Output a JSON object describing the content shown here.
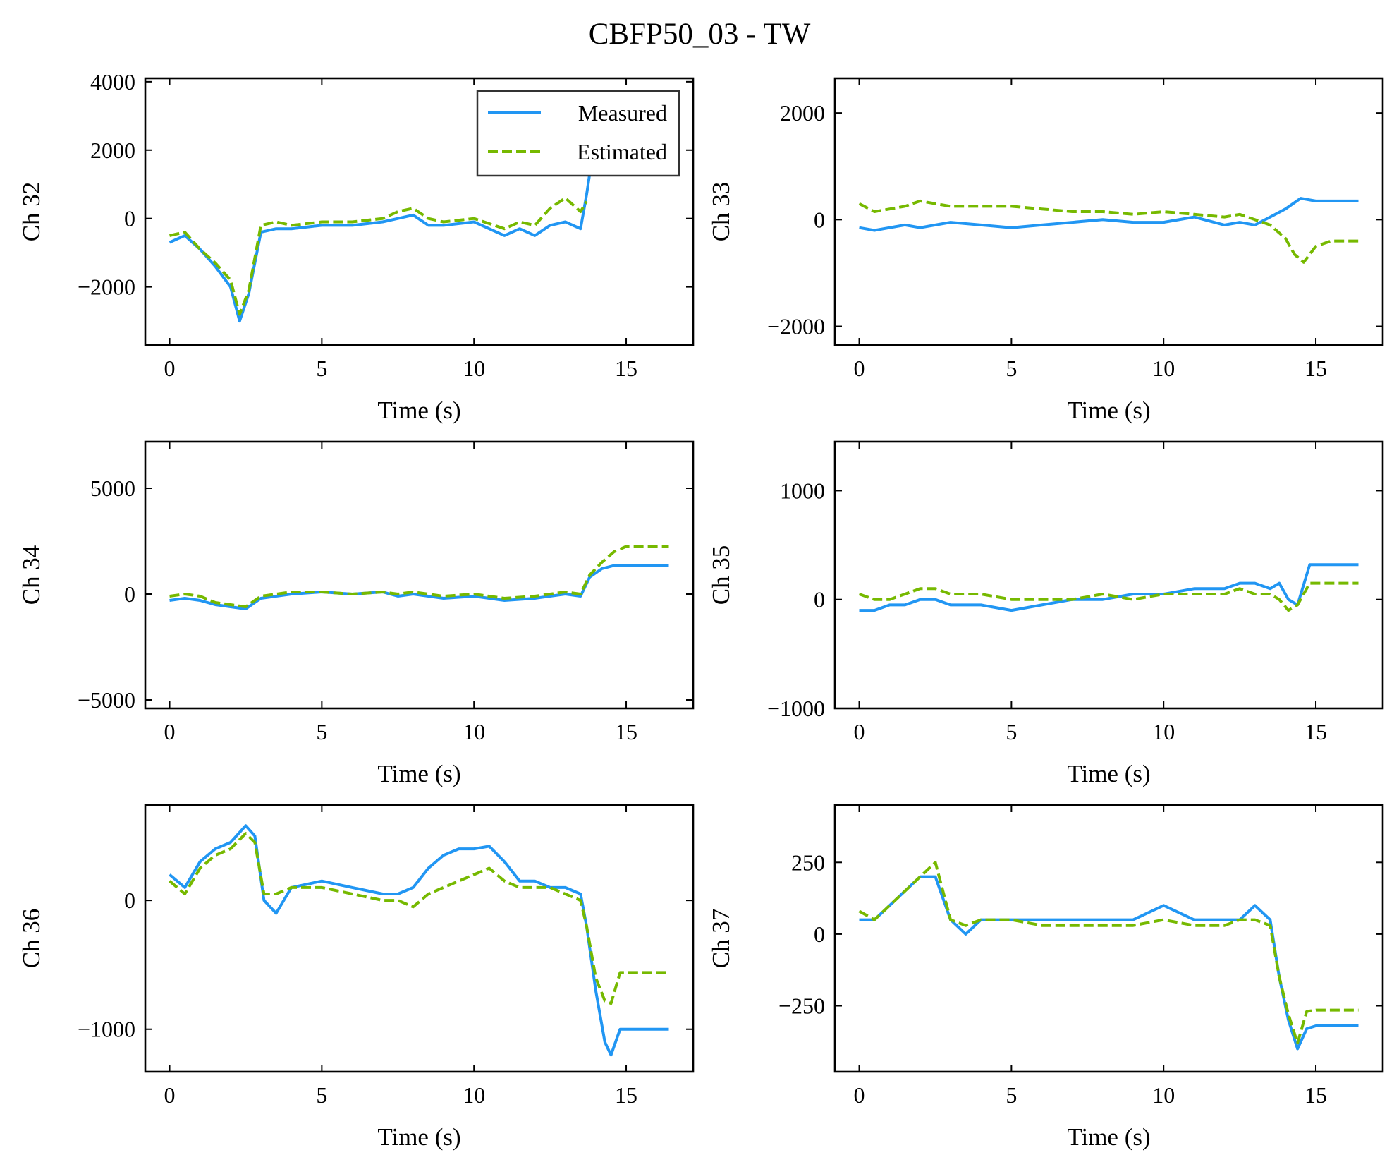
{
  "figure": {
    "suptitle": "CBFP50_03 - TW",
    "colors": {
      "measured": "#2196F3",
      "estimated": "#76B900"
    }
  },
  "legend": {
    "placement": "upper right of first panel",
    "items": [
      "Measured",
      "Estimated"
    ]
  },
  "chart_data": [
    {
      "type": "line",
      "ylabel": "Ch 32",
      "xlabel": "Time (s)",
      "xlim": [
        -0.8,
        17.2
      ],
      "ylim": [
        -3700,
        4100
      ],
      "xticks": [
        0,
        5,
        10,
        15
      ],
      "xtick_labels": [
        "0",
        "5",
        "10",
        "15"
      ],
      "yticks": [
        -2000,
        0,
        2000,
        4000
      ],
      "ytick_labels": [
        "−2000",
        "0",
        "2000",
        "4000"
      ],
      "series": [
        {
          "name": "Measured",
          "style": "solid",
          "color": "#2196F3",
          "x": [
            0,
            0.5,
            1,
            1.5,
            2,
            2.3,
            2.6,
            3,
            3.5,
            4,
            5,
            6,
            7,
            7.5,
            8,
            8.5,
            9,
            10,
            11,
            11.5,
            12,
            12.5,
            13,
            13.5,
            13.7,
            14,
            14.3,
            14.6,
            15,
            15.5,
            16,
            16.4
          ],
          "y": [
            -700,
            -500,
            -900,
            -1400,
            -2000,
            -3000,
            -2200,
            -400,
            -300,
            -300,
            -200,
            -200,
            -100,
            0,
            100,
            -200,
            -200,
            -100,
            -500,
            -300,
            -500,
            -200,
            -100,
            -300,
            700,
            2500,
            3500,
            3300,
            3000,
            2900,
            2900,
            2900
          ]
        },
        {
          "name": "Estimated",
          "style": "dashed",
          "color": "#76B900",
          "x": [
            0,
            0.5,
            1,
            1.5,
            2,
            2.3,
            2.6,
            3,
            3.5,
            4,
            5,
            6,
            7,
            7.5,
            8,
            8.5,
            9,
            10,
            11,
            11.5,
            12,
            12.5,
            13,
            13.5,
            13.7
          ],
          "y": [
            -500,
            -400,
            -900,
            -1300,
            -1800,
            -2800,
            -2100,
            -200,
            -100,
            -200,
            -100,
            -100,
            0,
            200,
            300,
            0,
            -100,
            0,
            -300,
            -100,
            -200,
            300,
            600,
            200,
            500
          ]
        }
      ]
    },
    {
      "type": "line",
      "ylabel": "Ch 33",
      "xlabel": "Time (s)",
      "xlim": [
        -0.8,
        17.2
      ],
      "ylim": [
        -2350,
        2650
      ],
      "xticks": [
        0,
        5,
        10,
        15
      ],
      "xtick_labels": [
        "0",
        "5",
        "10",
        "15"
      ],
      "yticks": [
        -2000,
        0,
        2000
      ],
      "ytick_labels": [
        "−2000",
        "0",
        "2000"
      ],
      "series": [
        {
          "name": "Measured",
          "style": "solid",
          "color": "#2196F3",
          "x": [
            0,
            0.5,
            1,
            1.5,
            2,
            2.5,
            3,
            4,
            5,
            6,
            7,
            8,
            9,
            10,
            11,
            12,
            12.5,
            13,
            13.5,
            14,
            14.5,
            15,
            15.5,
            16,
            16.4
          ],
          "y": [
            -150,
            -200,
            -150,
            -100,
            -150,
            -100,
            -50,
            -100,
            -150,
            -100,
            -50,
            0,
            -50,
            -50,
            50,
            -100,
            -50,
            -100,
            50,
            200,
            400,
            350,
            350,
            350,
            350
          ]
        },
        {
          "name": "Estimated",
          "style": "dashed",
          "color": "#76B900",
          "x": [
            0,
            0.5,
            1,
            1.5,
            2,
            2.5,
            3,
            4,
            5,
            6,
            7,
            8,
            9,
            10,
            11,
            12,
            12.5,
            13,
            13.5,
            14,
            14.3,
            14.6,
            15,
            15.5,
            16,
            16.4
          ],
          "y": [
            300,
            150,
            200,
            250,
            350,
            300,
            250,
            250,
            250,
            200,
            150,
            150,
            100,
            150,
            100,
            50,
            100,
            0,
            -100,
            -350,
            -650,
            -800,
            -500,
            -400,
            -400,
            -400
          ]
        }
      ]
    },
    {
      "type": "line",
      "ylabel": "Ch 34",
      "xlabel": "Time (s)",
      "xlim": [
        -0.8,
        17.2
      ],
      "ylim": [
        -5400,
        7200
      ],
      "xticks": [
        0,
        5,
        10,
        15
      ],
      "xtick_labels": [
        "0",
        "5",
        "10",
        "15"
      ],
      "yticks": [
        -5000,
        0,
        5000
      ],
      "ytick_labels": [
        "−5000",
        "0",
        "5000"
      ],
      "series": [
        {
          "name": "Measured",
          "style": "solid",
          "color": "#2196F3",
          "x": [
            0,
            0.5,
            1,
            1.5,
            2,
            2.5,
            3,
            4,
            5,
            6,
            7,
            7.5,
            8,
            9,
            10,
            11,
            12,
            12.5,
            13,
            13.5,
            13.8,
            14.2,
            14.6,
            15,
            15.5,
            16,
            16.4
          ],
          "y": [
            -300,
            -200,
            -300,
            -500,
            -600,
            -700,
            -200,
            0,
            100,
            0,
            100,
            -100,
            0,
            -200,
            -100,
            -300,
            -200,
            -100,
            0,
            -100,
            800,
            1200,
            1350,
            1350,
            1350,
            1350,
            1350
          ]
        },
        {
          "name": "Estimated",
          "style": "dashed",
          "color": "#76B900",
          "x": [
            0,
            0.5,
            1,
            1.5,
            2,
            2.5,
            3,
            4,
            5,
            6,
            7,
            7.5,
            8,
            9,
            10,
            11,
            12,
            12.5,
            13,
            13.5,
            13.8,
            14.2,
            14.6,
            15,
            15.5,
            16,
            16.4
          ],
          "y": [
            -100,
            0,
            -100,
            -400,
            -500,
            -600,
            -100,
            100,
            100,
            0,
            100,
            0,
            100,
            -100,
            0,
            -200,
            -100,
            0,
            100,
            0,
            900,
            1500,
            2000,
            2250,
            2250,
            2250,
            2250
          ]
        }
      ]
    },
    {
      "type": "line",
      "ylabel": "Ch 35",
      "xlabel": "Time (s)",
      "xlim": [
        -0.8,
        17.2
      ],
      "ylim": [
        -1000,
        1450
      ],
      "xticks": [
        0,
        5,
        10,
        15
      ],
      "xtick_labels": [
        "0",
        "5",
        "10",
        "15"
      ],
      "yticks": [
        -1000,
        0,
        1000
      ],
      "ytick_labels": [
        "−1000",
        "0",
        "1000"
      ],
      "series": [
        {
          "name": "Measured",
          "style": "solid",
          "color": "#2196F3",
          "x": [
            0,
            0.5,
            1,
            1.5,
            2,
            2.5,
            3,
            4,
            5,
            6,
            7,
            8,
            9,
            10,
            11,
            12,
            12.5,
            13,
            13.5,
            13.8,
            14.1,
            14.4,
            14.8,
            15.5,
            16,
            16.4
          ],
          "y": [
            -100,
            -100,
            -50,
            -50,
            0,
            0,
            -50,
            -50,
            -100,
            -50,
            0,
            0,
            50,
            50,
            100,
            100,
            150,
            150,
            100,
            150,
            0,
            -50,
            320,
            320,
            320,
            320
          ]
        },
        {
          "name": "Estimated",
          "style": "dashed",
          "color": "#76B900",
          "x": [
            0,
            0.5,
            1,
            1.5,
            2,
            2.5,
            3,
            4,
            5,
            6,
            7,
            8,
            9,
            10,
            11,
            12,
            12.5,
            13,
            13.5,
            13.8,
            14.1,
            14.4,
            14.8,
            15.5,
            16,
            16.4
          ],
          "y": [
            50,
            0,
            0,
            50,
            100,
            100,
            50,
            50,
            0,
            0,
            0,
            50,
            0,
            50,
            50,
            50,
            100,
            50,
            50,
            0,
            -100,
            -50,
            150,
            150,
            150,
            150
          ]
        }
      ]
    },
    {
      "type": "line",
      "ylabel": "Ch 36",
      "xlabel": "Time (s)",
      "xlim": [
        -0.8,
        17.2
      ],
      "ylim": [
        -1330,
        740
      ],
      "xticks": [
        0,
        5,
        10,
        15
      ],
      "xtick_labels": [
        "0",
        "5",
        "10",
        "15"
      ],
      "yticks": [
        -1000,
        0
      ],
      "ytick_labels": [
        "−1000",
        "0"
      ],
      "series": [
        {
          "name": "Measured",
          "style": "solid",
          "color": "#2196F3",
          "x": [
            0,
            0.5,
            1,
            1.5,
            2,
            2.5,
            2.8,
            3.1,
            3.5,
            4,
            5,
            6,
            7,
            7.5,
            8,
            8.5,
            9,
            9.5,
            10,
            10.5,
            11,
            11.5,
            12,
            12.5,
            13,
            13.5,
            13.7,
            14,
            14.3,
            14.5,
            14.8,
            15.5,
            16.4
          ],
          "y": [
            200,
            100,
            300,
            400,
            450,
            580,
            500,
            0,
            -100,
            100,
            150,
            100,
            50,
            50,
            100,
            250,
            350,
            400,
            400,
            420,
            300,
            150,
            150,
            100,
            100,
            50,
            -200,
            -700,
            -1100,
            -1200,
            -1000,
            -1000,
            -1000
          ]
        },
        {
          "name": "Estimated",
          "style": "dashed",
          "color": "#76B900",
          "x": [
            0,
            0.5,
            1,
            1.5,
            2,
            2.5,
            2.8,
            3.1,
            3.5,
            4,
            5,
            6,
            7,
            7.5,
            8,
            8.5,
            9,
            9.5,
            10,
            10.5,
            11,
            11.5,
            12,
            12.5,
            13,
            13.5,
            13.7,
            14,
            14.3,
            14.5,
            14.8,
            15.5,
            16.4
          ],
          "y": [
            150,
            50,
            250,
            350,
            400,
            520,
            450,
            50,
            50,
            100,
            100,
            50,
            0,
            0,
            -50,
            50,
            100,
            150,
            200,
            250,
            150,
            100,
            100,
            100,
            50,
            0,
            -200,
            -600,
            -780,
            -800,
            -560,
            -560,
            -560
          ]
        }
      ]
    },
    {
      "type": "line",
      "ylabel": "Ch 37",
      "xlabel": "Time (s)",
      "xlim": [
        -0.8,
        17.2
      ],
      "ylim": [
        -480,
        450
      ],
      "xticks": [
        0,
        5,
        10,
        15
      ],
      "xtick_labels": [
        "0",
        "5",
        "10",
        "15"
      ],
      "yticks": [
        -250,
        0,
        250
      ],
      "ytick_labels": [
        "−250",
        "0",
        "250"
      ],
      "series": [
        {
          "name": "Measured",
          "style": "solid",
          "color": "#2196F3",
          "x": [
            0,
            0.5,
            1,
            1.5,
            2,
            2.5,
            3,
            3.5,
            4,
            5,
            6,
            7,
            8,
            9,
            10,
            11,
            12,
            12.5,
            13,
            13.5,
            13.8,
            14.1,
            14.4,
            14.7,
            15,
            15.5,
            16,
            16.4
          ],
          "y": [
            50,
            50,
            100,
            150,
            200,
            200,
            50,
            0,
            50,
            50,
            50,
            50,
            50,
            50,
            100,
            50,
            50,
            50,
            100,
            50,
            -150,
            -300,
            -400,
            -330,
            -320,
            -320,
            -320,
            -320
          ]
        },
        {
          "name": "Estimated",
          "style": "dashed",
          "color": "#76B900",
          "x": [
            0,
            0.5,
            1,
            1.5,
            2,
            2.5,
            3,
            3.5,
            4,
            5,
            6,
            7,
            8,
            9,
            10,
            11,
            12,
            12.5,
            13,
            13.5,
            13.8,
            14.1,
            14.4,
            14.7,
            15,
            15.5,
            16,
            16.4
          ],
          "y": [
            80,
            50,
            100,
            150,
            200,
            250,
            50,
            30,
            50,
            50,
            30,
            30,
            30,
            30,
            50,
            30,
            30,
            50,
            50,
            30,
            -150,
            -280,
            -380,
            -270,
            -265,
            -265,
            -265,
            -265
          ]
        }
      ]
    }
  ]
}
